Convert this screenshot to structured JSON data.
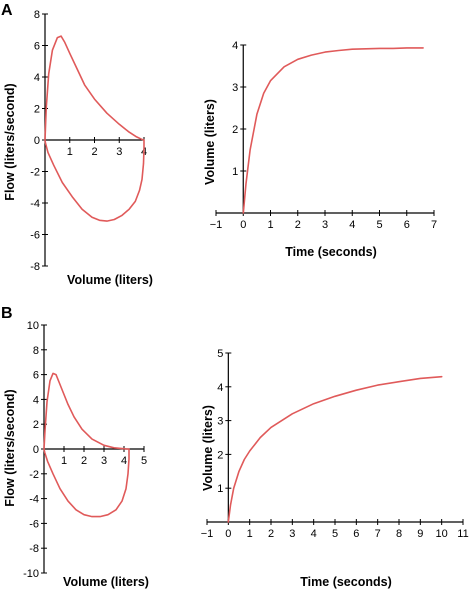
{
  "panels": [
    {
      "label": "A"
    },
    {
      "label": "B"
    }
  ],
  "chart_data": [
    {
      "panel": "A",
      "type": "line",
      "xlabel": "Volume (liters)",
      "ylabel": "Flow (liters/second)",
      "xlim": [
        0,
        4
      ],
      "ylim": [
        -8,
        8
      ],
      "xticks": [
        1,
        2,
        3,
        4
      ],
      "yticks": [
        -8,
        -6,
        -4,
        -2,
        0,
        2,
        4,
        6,
        8
      ],
      "color": "#e05a5a",
      "series": [
        {
          "x": [
            0,
            0.05,
            0.15,
            0.3,
            0.5,
            0.65,
            0.8,
            1.0,
            1.3,
            1.6,
            2.0,
            2.5,
            3.0,
            3.4,
            3.7,
            3.9,
            4.0,
            4.0,
            3.98,
            3.92,
            3.82,
            3.65,
            3.4,
            3.1,
            2.8,
            2.5,
            2.2,
            1.9,
            1.5,
            1.1,
            0.7,
            0.35,
            0.12,
            0.02,
            0
          ],
          "y": [
            0,
            2.0,
            4.2,
            5.7,
            6.5,
            6.6,
            6.2,
            5.5,
            4.5,
            3.5,
            2.6,
            1.7,
            1.0,
            0.5,
            0.2,
            0.05,
            0,
            -0.5,
            -1.5,
            -2.5,
            -3.2,
            -3.9,
            -4.4,
            -4.8,
            -5.05,
            -5.15,
            -5.1,
            -4.9,
            -4.4,
            -3.6,
            -2.7,
            -1.6,
            -0.8,
            -0.2,
            0
          ]
        }
      ]
    },
    {
      "panel": "A",
      "type": "line",
      "xlabel": "Time (seconds)",
      "ylabel": "Volume (liters)",
      "xlim": [
        -1,
        7
      ],
      "ylim": [
        0,
        4
      ],
      "xticks": [
        -1,
        0,
        1,
        2,
        3,
        4,
        5,
        6,
        7
      ],
      "yticks": [
        1,
        2,
        3,
        4
      ],
      "color": "#e05a5a",
      "series": [
        {
          "x": [
            0,
            0.1,
            0.25,
            0.5,
            0.75,
            1.0,
            1.5,
            2.0,
            2.5,
            3.0,
            3.5,
            4.0,
            4.5,
            5.0,
            5.5,
            6.0,
            6.6
          ],
          "y": [
            0,
            0.7,
            1.5,
            2.35,
            2.85,
            3.15,
            3.48,
            3.66,
            3.76,
            3.83,
            3.87,
            3.9,
            3.91,
            3.92,
            3.92,
            3.93,
            3.93
          ]
        }
      ]
    },
    {
      "panel": "B",
      "type": "line",
      "xlabel": "Volume (liters)",
      "ylabel": "Flow (liters/second)",
      "xlim": [
        0,
        5
      ],
      "ylim": [
        -10,
        10
      ],
      "xticks": [
        1,
        2,
        3,
        4,
        5
      ],
      "yticks": [
        -10,
        -8,
        -6,
        -4,
        -2,
        0,
        2,
        4,
        6,
        8,
        10
      ],
      "color": "#e05a5a",
      "series": [
        {
          "x": [
            0,
            0.05,
            0.15,
            0.3,
            0.45,
            0.6,
            0.75,
            0.95,
            1.2,
            1.5,
            1.9,
            2.4,
            3.0,
            3.5,
            3.9,
            4.15,
            4.25,
            4.25,
            4.2,
            4.1,
            3.9,
            3.6,
            3.2,
            2.8,
            2.4,
            2.0,
            1.6,
            1.2,
            0.8,
            0.45,
            0.18,
            0.04,
            0
          ],
          "y": [
            0,
            1.5,
            3.8,
            5.5,
            6.1,
            6.0,
            5.4,
            4.6,
            3.6,
            2.6,
            1.6,
            0.8,
            0.3,
            0.1,
            0.03,
            0,
            0,
            -0.8,
            -2.0,
            -3.2,
            -4.2,
            -4.9,
            -5.3,
            -5.45,
            -5.45,
            -5.3,
            -4.9,
            -4.2,
            -3.2,
            -2.0,
            -1.0,
            -0.3,
            0
          ]
        }
      ]
    },
    {
      "panel": "B",
      "type": "line",
      "xlabel": "Time (seconds)",
      "ylabel": "Volume (liters)",
      "xlim": [
        -1,
        11
      ],
      "ylim": [
        0,
        5
      ],
      "xticks": [
        -1,
        0,
        1,
        2,
        3,
        4,
        5,
        6,
        7,
        8,
        9,
        10,
        11
      ],
      "yticks": [
        1,
        2,
        3,
        4,
        5
      ],
      "color": "#e05a5a",
      "series": [
        {
          "x": [
            0,
            0.1,
            0.25,
            0.5,
            0.75,
            1.0,
            1.5,
            2.0,
            3.0,
            4.0,
            5.0,
            6.0,
            7.0,
            8.0,
            9.0,
            10.0
          ],
          "y": [
            0,
            0.5,
            1.0,
            1.5,
            1.85,
            2.1,
            2.5,
            2.8,
            3.2,
            3.5,
            3.72,
            3.9,
            4.05,
            4.15,
            4.25,
            4.3
          ]
        }
      ]
    }
  ]
}
